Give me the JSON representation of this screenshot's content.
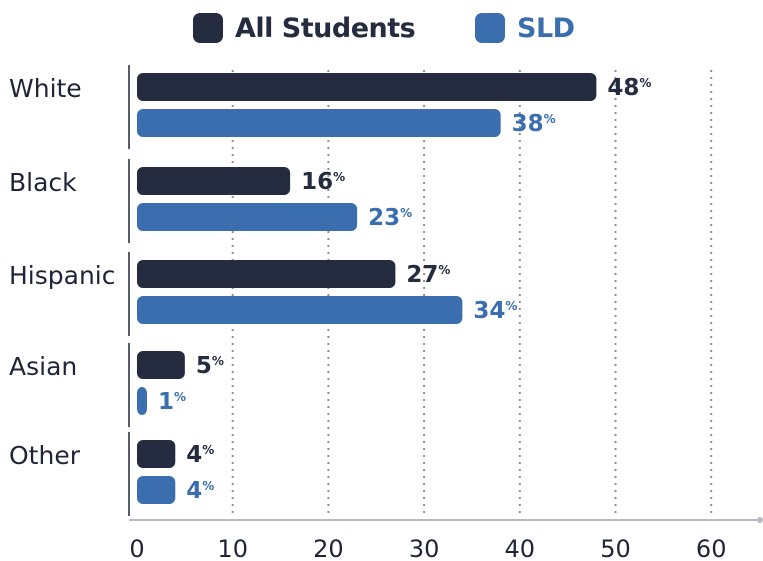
{
  "colors": {
    "all_students": "#252c40",
    "sld": "#3a6eae",
    "text": "#1f2537",
    "grid": "#8a8f99"
  },
  "chart_data": {
    "type": "bar",
    "orientation": "horizontal",
    "title": "",
    "xlabel": "",
    "ylabel": "",
    "categories": [
      "White",
      "Black",
      "Hispanic",
      "Asian",
      "Other"
    ],
    "series": [
      {
        "name": "All Students",
        "values": [
          48,
          16,
          27,
          5,
          4
        ],
        "labels": [
          "48%",
          "16%",
          "27%",
          "5%",
          "4%"
        ]
      },
      {
        "name": "SLD",
        "values": [
          38,
          23,
          34,
          1,
          4
        ],
        "labels": [
          "38%",
          "23%",
          "34%",
          "1%",
          "4%"
        ]
      }
    ],
    "xlim": [
      0,
      60
    ],
    "xticks": [
      0,
      10,
      20,
      30,
      40,
      50,
      60
    ],
    "grid": "vertical dotted",
    "legend": "top-center"
  }
}
